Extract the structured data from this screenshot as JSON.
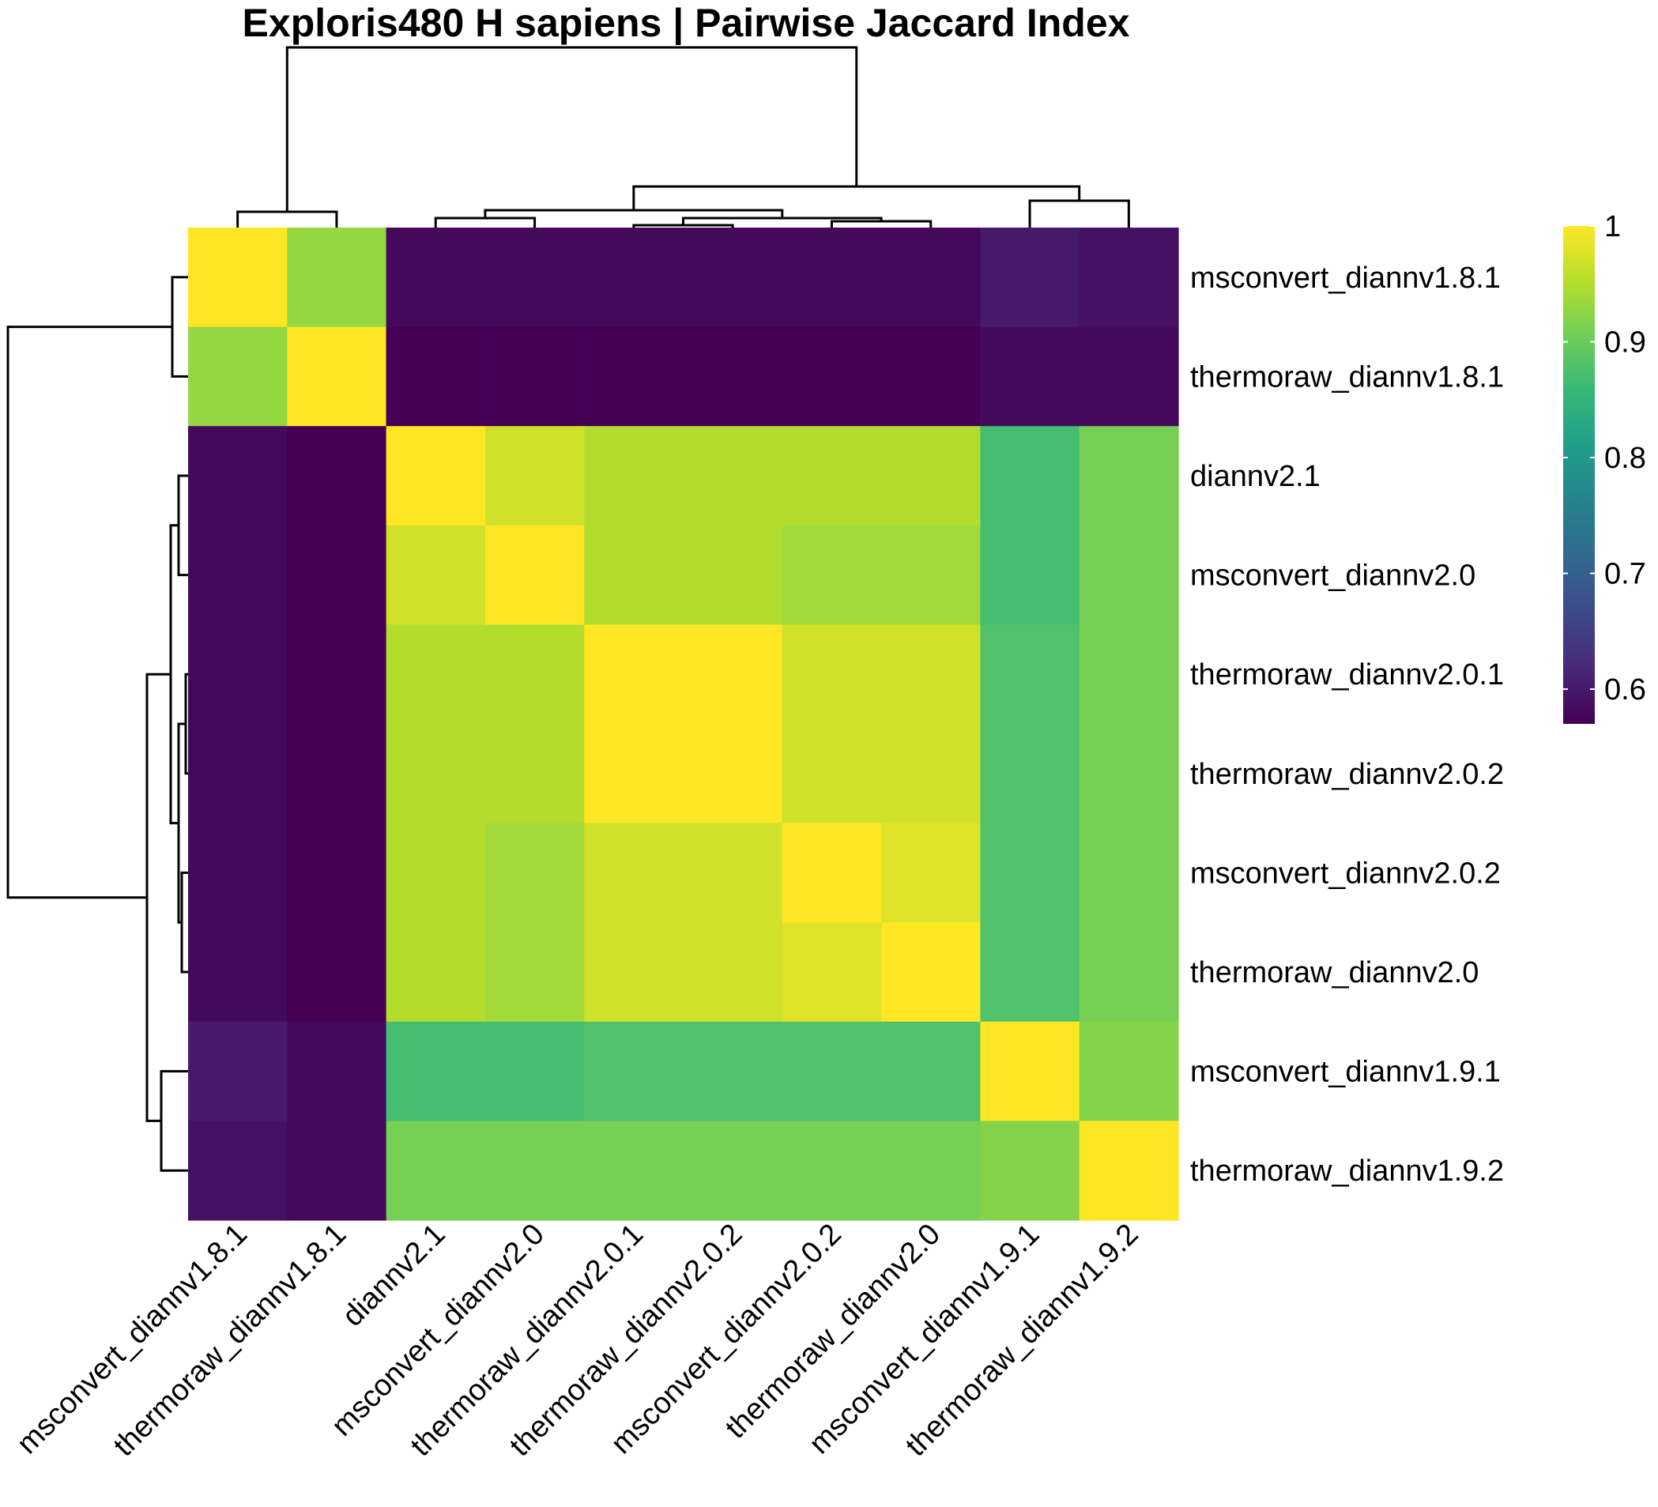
{
  "chart_data": {
    "type": "heatmap",
    "title": "Exploris480 H sapiens | Pairwise Jaccard Index",
    "rows": [
      "msconvert_diannv1.8.1",
      "thermoraw_diannv1.8.1",
      "diannv2.1",
      "msconvert_diannv2.0",
      "thermoraw_diannv2.0.1",
      "thermoraw_diannv2.0.2",
      "msconvert_diannv2.0.2",
      "thermoraw_diannv2.0",
      "msconvert_diannv1.9.1",
      "thermoraw_diannv1.9.2"
    ],
    "columns": [
      "msconvert_diannv1.8.1",
      "thermoraw_diannv1.8.1",
      "diannv2.1",
      "msconvert_diannv2.0",
      "thermoraw_diannv2.0.1",
      "thermoraw_diannv2.0.2",
      "msconvert_diannv2.0.2",
      "thermoraw_diannv2.0",
      "msconvert_diannv1.9.1",
      "thermoraw_diannv1.9.2"
    ],
    "values": [
      [
        1.0,
        0.93,
        0.58,
        0.58,
        0.58,
        0.58,
        0.58,
        0.58,
        0.6,
        0.59
      ],
      [
        0.93,
        1.0,
        0.57,
        0.57,
        0.57,
        0.57,
        0.57,
        0.57,
        0.58,
        0.58
      ],
      [
        0.58,
        0.57,
        1.0,
        0.97,
        0.95,
        0.95,
        0.95,
        0.95,
        0.87,
        0.91
      ],
      [
        0.58,
        0.57,
        0.97,
        1.0,
        0.95,
        0.95,
        0.94,
        0.94,
        0.87,
        0.91
      ],
      [
        0.58,
        0.57,
        0.95,
        0.95,
        1.0,
        1.0,
        0.97,
        0.97,
        0.88,
        0.91
      ],
      [
        0.58,
        0.57,
        0.95,
        0.95,
        1.0,
        1.0,
        0.97,
        0.97,
        0.88,
        0.91
      ],
      [
        0.58,
        0.57,
        0.95,
        0.94,
        0.97,
        0.97,
        1.0,
        0.98,
        0.88,
        0.91
      ],
      [
        0.58,
        0.57,
        0.95,
        0.94,
        0.97,
        0.97,
        0.98,
        1.0,
        0.88,
        0.91
      ],
      [
        0.6,
        0.58,
        0.87,
        0.87,
        0.88,
        0.88,
        0.88,
        0.88,
        1.0,
        0.92
      ],
      [
        0.59,
        0.58,
        0.91,
        0.91,
        0.91,
        0.91,
        0.91,
        0.91,
        0.92,
        1.0
      ]
    ],
    "color_scale": {
      "name": "viridis",
      "range": [
        0.57,
        1.0
      ],
      "ticks": [
        0.6,
        0.7,
        0.8,
        0.9,
        1
      ],
      "tick_labels": [
        "0.6",
        "0.7",
        "0.8",
        "0.9",
        "1"
      ]
    },
    "column_dendrogram": "top",
    "row_dendrogram": "left",
    "legend": "right"
  }
}
